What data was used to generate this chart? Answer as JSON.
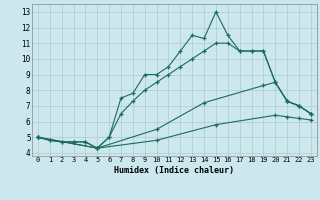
{
  "title": "",
  "xlabel": "Humidex (Indice chaleur)",
  "background_color": "#cce8ee",
  "grid_color": "#aacccc",
  "line_color": "#1a6b5a",
  "xlim": [
    -0.5,
    23.5
  ],
  "ylim": [
    3.8,
    13.5
  ],
  "yticks": [
    4,
    5,
    6,
    7,
    8,
    9,
    10,
    11,
    12,
    13
  ],
  "xticks": [
    0,
    1,
    2,
    3,
    4,
    5,
    6,
    7,
    8,
    9,
    10,
    11,
    12,
    13,
    14,
    15,
    16,
    17,
    18,
    19,
    20,
    21,
    22,
    23
  ],
  "line1_x": [
    0,
    1,
    2,
    3,
    4,
    5,
    6,
    7,
    8,
    9,
    10,
    11,
    12,
    13,
    14,
    15,
    16,
    17,
    18,
    19,
    20,
    21,
    22,
    23
  ],
  "line1_y": [
    5.0,
    4.8,
    4.7,
    4.7,
    4.7,
    4.3,
    5.0,
    7.5,
    7.8,
    9.0,
    9.0,
    9.5,
    10.5,
    11.5,
    11.3,
    13.0,
    11.5,
    10.5,
    10.5,
    10.5,
    8.5,
    7.3,
    7.0,
    6.5
  ],
  "line2_x": [
    0,
    1,
    2,
    3,
    4,
    5,
    6,
    7,
    8,
    9,
    10,
    11,
    12,
    13,
    14,
    15,
    16,
    17,
    18,
    19,
    20,
    21,
    22,
    23
  ],
  "line2_y": [
    5.0,
    4.8,
    4.7,
    4.7,
    4.7,
    4.3,
    5.0,
    6.5,
    7.3,
    8.0,
    8.5,
    9.0,
    9.5,
    10.0,
    10.5,
    11.0,
    11.0,
    10.5,
    10.5,
    10.5,
    8.5,
    7.3,
    7.0,
    6.5
  ],
  "line3_x": [
    0,
    5,
    10,
    14,
    19,
    20,
    21,
    22,
    23
  ],
  "line3_y": [
    5.0,
    4.3,
    5.5,
    7.2,
    8.3,
    8.5,
    7.3,
    7.0,
    6.5
  ],
  "line4_x": [
    0,
    5,
    10,
    15,
    20,
    21,
    22,
    23
  ],
  "line4_y": [
    5.0,
    4.3,
    4.8,
    5.8,
    6.4,
    6.3,
    6.2,
    6.1
  ]
}
